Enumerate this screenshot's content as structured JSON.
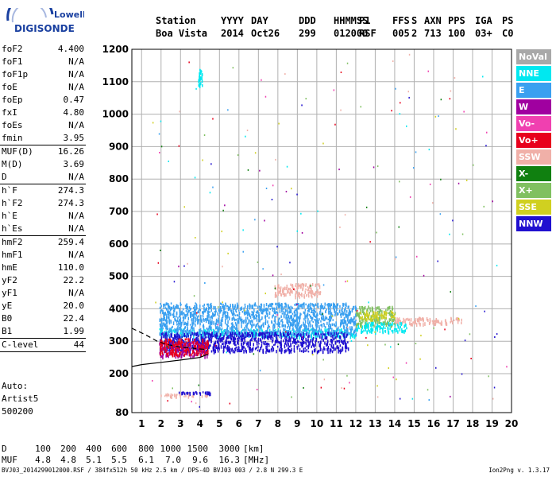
{
  "logo": {
    "line1": "Lowell",
    "line2": "DIGISONDE"
  },
  "header": {
    "columns": [
      {
        "label": "Station",
        "value": "Boa Vista"
      },
      {
        "label": "YYYY",
        "value": "2014"
      },
      {
        "label": "DAY",
        "value": "Oct26"
      },
      {
        "label": "DDD",
        "value": "299"
      },
      {
        "label": "HHMMSS",
        "value": "012000"
      },
      {
        "label": "P1",
        "value": "RSF"
      },
      {
        "label": "FFS",
        "value": "005"
      },
      {
        "label": "S",
        "value": "2"
      },
      {
        "label": "AXN",
        "value": "713"
      },
      {
        "label": "PPS",
        "value": "100"
      },
      {
        "label": "IGA",
        "value": "03+"
      },
      {
        "label": "PS",
        "value": "C0"
      }
    ]
  },
  "params": {
    "group1": [
      {
        "name": "foF2",
        "value": "4.400"
      },
      {
        "name": "foF1",
        "value": "N/A"
      },
      {
        "name": "foF1p",
        "value": "N/A"
      },
      {
        "name": "foE",
        "value": "N/A"
      },
      {
        "name": "foEp",
        "value": "0.47"
      },
      {
        "name": "fxI",
        "value": "4.80"
      },
      {
        "name": "foEs",
        "value": "N/A"
      },
      {
        "name": "fmin",
        "value": "3.95"
      }
    ],
    "group2": [
      {
        "name": "MUF(D)",
        "value": "16.26"
      },
      {
        "name": "M(D)",
        "value": "3.69"
      },
      {
        "name": "D",
        "value": "N/A"
      }
    ],
    "group3": [
      {
        "name": "h`F",
        "value": "274.3"
      },
      {
        "name": "h`F2",
        "value": "274.3"
      },
      {
        "name": "h`E",
        "value": "N/A"
      },
      {
        "name": "h`Es",
        "value": "N/A"
      }
    ],
    "group4": [
      {
        "name": "hmF2",
        "value": "259.4"
      },
      {
        "name": "hmF1",
        "value": "N/A"
      },
      {
        "name": "hmE",
        "value": "110.0"
      },
      {
        "name": "yF2",
        "value": "22.2"
      },
      {
        "name": "yF1",
        "value": "N/A"
      },
      {
        "name": "yE",
        "value": "20.0"
      },
      {
        "name": "B0",
        "value": "22.4"
      },
      {
        "name": "B1",
        "value": "1.99"
      }
    ],
    "group5": [
      {
        "name": "C-level",
        "value": "44"
      }
    ]
  },
  "extra": {
    "line1": "Auto:",
    "line2": "Artist5",
    "line3": "500200"
  },
  "muf_table": {
    "d_label": "D",
    "muf_label": "MUF",
    "d_values": [
      "100",
      "200",
      "400",
      "600",
      "800",
      "1000",
      "1500",
      "3000"
    ],
    "muf_values": [
      "4.8",
      "4.8",
      "5.1",
      "5.5",
      "6.1",
      "7.0",
      "9.6",
      "16.3"
    ],
    "d_unit": "[km]",
    "muf_unit": "[MHz]"
  },
  "footer": {
    "left": "BVJ03_2014299012000.RSF / 384fx512h 50 kHz 2.5 km / DPS-4D BVJ03 003 / 2.8 N 299.3 E",
    "right": "Ion2Png v. 1.3.17"
  },
  "legend": [
    {
      "label": "NoVal",
      "color": "#a8a8a8"
    },
    {
      "label": "NNE",
      "color": "#00e8f0"
    },
    {
      "label": "E",
      "color": "#3aa0f0"
    },
    {
      "label": "W",
      "color": "#a000a0"
    },
    {
      "label": "Vo-",
      "color": "#f040b0"
    },
    {
      "label": "Vo+",
      "color": "#e8001c"
    },
    {
      "label": "SSW",
      "color": "#f0b0a8"
    },
    {
      "label": "X-",
      "color": "#108010"
    },
    {
      "label": "X+",
      "color": "#80c060"
    },
    {
      "label": "SSE",
      "color": "#d0d020"
    },
    {
      "label": "NNW",
      "color": "#2010d0"
    }
  ],
  "chart_data": {
    "type": "scatter",
    "xlim": [
      0.5,
      20
    ],
    "ylim": [
      80,
      1200
    ],
    "x_ticks": [
      1,
      2,
      3,
      4,
      5,
      6,
      7,
      8,
      9,
      10,
      11,
      12,
      13,
      14,
      15,
      16,
      17,
      18,
      19,
      20
    ],
    "y_ticks": [
      80,
      200,
      300,
      400,
      500,
      600,
      700,
      800,
      900,
      1000,
      1100,
      1200
    ],
    "grid": true,
    "xlabel": "",
    "ylabel": "",
    "trace_curves": [
      {
        "style": "solid",
        "points": [
          [
            0.5,
            222
          ],
          [
            1,
            228
          ],
          [
            2,
            235
          ],
          [
            3,
            242
          ],
          [
            4,
            250
          ],
          [
            4.4,
            260
          ]
        ]
      },
      {
        "style": "dashed",
        "points": [
          [
            0.5,
            340
          ],
          [
            1.2,
            320
          ],
          [
            1.8,
            300
          ],
          [
            2.3,
            290
          ],
          [
            3,
            282
          ],
          [
            4,
            276
          ],
          [
            4.4,
            274
          ]
        ]
      }
    ],
    "echo_regions": [
      {
        "name": "NNE",
        "x": [
          1.9,
          12.0
        ],
        "y": [
          315,
          340
        ]
      },
      {
        "name": "E",
        "x": [
          1.9,
          12.0
        ],
        "y": [
          320,
          420
        ]
      },
      {
        "name": "NNW",
        "x": [
          1.9,
          11.6
        ],
        "y": [
          270,
          330
        ]
      },
      {
        "name": "W",
        "x": [
          1.9,
          4.4
        ],
        "y": [
          255,
          300
        ]
      },
      {
        "name": "Vo+",
        "x": [
          1.9,
          4.4
        ],
        "y": [
          260,
          310
        ]
      },
      {
        "name": "SSW",
        "x": [
          7.8,
          10.2
        ],
        "y": [
          440,
          480
        ]
      },
      {
        "name": "X+",
        "x": [
          12.0,
          14.0
        ],
        "y": [
          350,
          410
        ]
      },
      {
        "name": "SSE",
        "x": [
          12.2,
          14.0
        ],
        "y": [
          370,
          395
        ]
      },
      {
        "name": "SSW",
        "x": [
          14.0,
          17.5
        ],
        "y": [
          355,
          375
        ]
      },
      {
        "name": "NNE",
        "x": [
          12.0,
          14.6
        ],
        "y": [
          330,
          360
        ]
      },
      {
        "name": "SSW",
        "x": [
          1.9,
          4.5
        ],
        "y": [
          132,
          140
        ]
      },
      {
        "name": "NNW",
        "x": [
          2.9,
          4.5
        ],
        "y": [
          142,
          146
        ]
      },
      {
        "name": "NNE",
        "x": [
          3.9,
          4.1
        ],
        "y": [
          1090,
          1140
        ]
      }
    ]
  }
}
